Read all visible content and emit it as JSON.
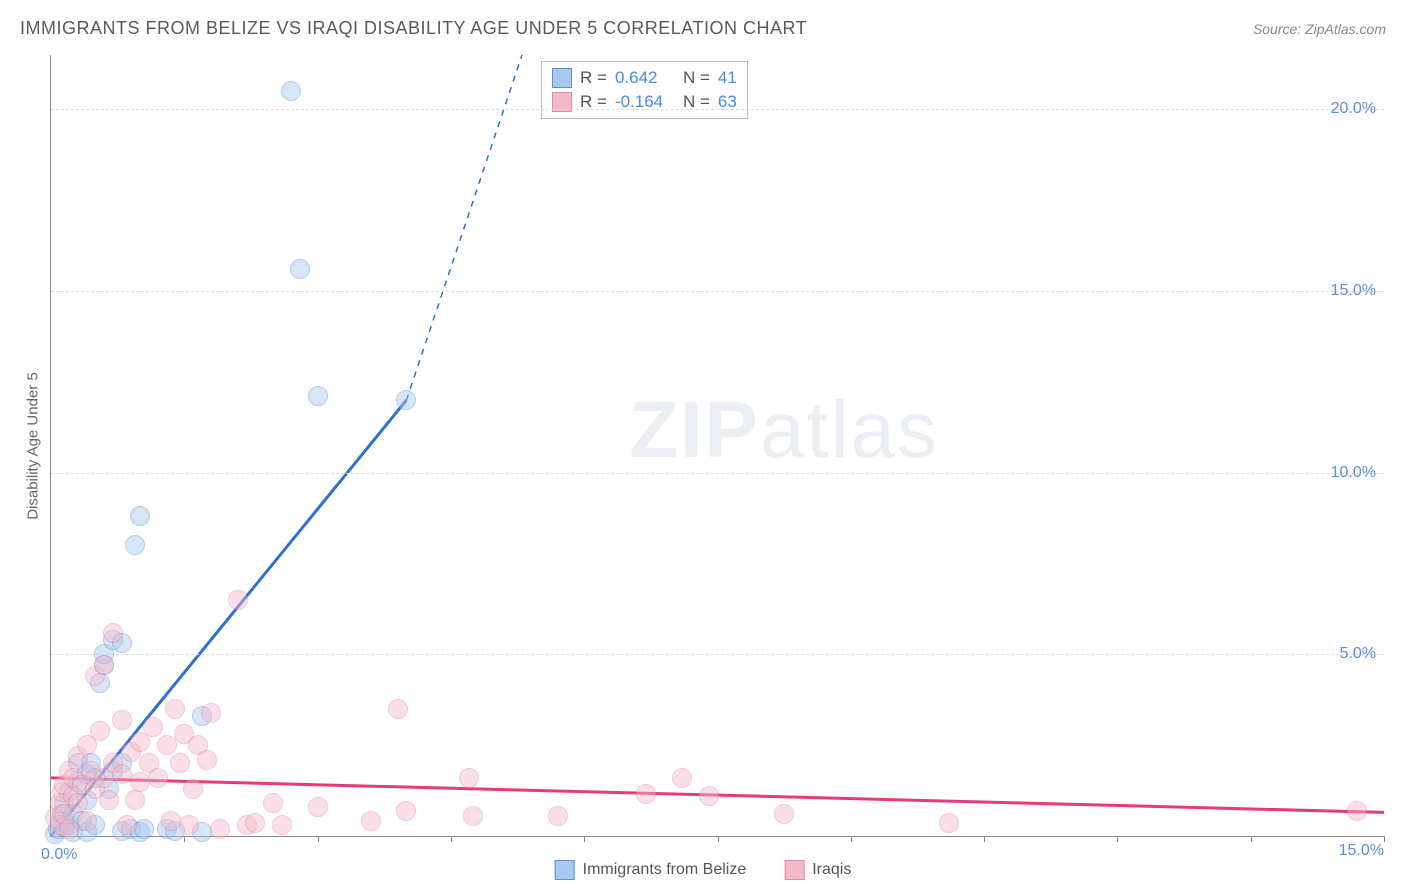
{
  "title": "IMMIGRANTS FROM BELIZE VS IRAQI DISABILITY AGE UNDER 5 CORRELATION CHART",
  "source": "Source: ZipAtlas.com",
  "y_axis_label": "Disability Age Under 5",
  "watermark_bold": "ZIP",
  "watermark_rest": "atlas",
  "chart": {
    "type": "scatter",
    "xlim": [
      0,
      15
    ],
    "ylim": [
      0,
      21.5
    ],
    "x_origin_label": "0.0%",
    "x_end_label": "15.0%",
    "y_ticks": [
      {
        "v": 5,
        "label": "5.0%"
      },
      {
        "v": 10,
        "label": "10.0%"
      },
      {
        "v": 15,
        "label": "15.0%"
      },
      {
        "v": 20,
        "label": "20.0%"
      }
    ],
    "x_tick_positions": [
      1.5,
      3.0,
      4.5,
      6.0,
      7.5,
      9.0,
      10.5,
      12.0,
      13.5,
      15.0
    ],
    "grid_color": "#dddddd",
    "background_color": "#ffffff",
    "marker_radius": 10,
    "marker_opacity": 0.45
  },
  "series": [
    {
      "key": "belize",
      "label": "Immigrants from Belize",
      "color_fill": "#a8c8ef",
      "color_stroke": "#5b8fd8",
      "R_label": "R =",
      "R": "0.642",
      "N_label": "N =",
      "N": "41",
      "trend_color": "#2f6fd0",
      "trend_width": 3,
      "trend_solid": {
        "x1": 0,
        "y1": 0,
        "x2": 4.0,
        "y2": 12.0
      },
      "trend_dash": {
        "x1": 4.0,
        "y1": 12.0,
        "x2": 5.3,
        "y2": 21.5
      },
      "points": [
        [
          0.05,
          0.05
        ],
        [
          0.08,
          0.2
        ],
        [
          0.1,
          0.4
        ],
        [
          0.12,
          0.6
        ],
        [
          0.15,
          0.25
        ],
        [
          0.15,
          0.9
        ],
        [
          0.2,
          0.3
        ],
        [
          0.2,
          1.2
        ],
        [
          0.25,
          0.1
        ],
        [
          0.25,
          0.6
        ],
        [
          0.3,
          1.5
        ],
        [
          0.3,
          2.0
        ],
        [
          0.35,
          0.4
        ],
        [
          0.4,
          1.0
        ],
        [
          0.4,
          1.7
        ],
        [
          0.4,
          0.1
        ],
        [
          0.45,
          2.0
        ],
        [
          0.5,
          1.6
        ],
        [
          0.5,
          0.3
        ],
        [
          0.55,
          4.2
        ],
        [
          0.6,
          4.7
        ],
        [
          0.6,
          5.0
        ],
        [
          0.65,
          1.3
        ],
        [
          0.7,
          1.8
        ],
        [
          0.7,
          5.4
        ],
        [
          0.8,
          0.15
        ],
        [
          0.8,
          2.0
        ],
        [
          0.8,
          5.3
        ],
        [
          0.9,
          0.2
        ],
        [
          0.95,
          8.0
        ],
        [
          1.0,
          0.1
        ],
        [
          1.0,
          8.8
        ],
        [
          1.05,
          0.2
        ],
        [
          1.3,
          0.2
        ],
        [
          1.4,
          0.15
        ],
        [
          1.7,
          3.3
        ],
        [
          1.7,
          0.1
        ],
        [
          2.7,
          20.5
        ],
        [
          2.8,
          15.6
        ],
        [
          3.0,
          12.1
        ],
        [
          4.0,
          12.0
        ]
      ]
    },
    {
      "key": "iraqis",
      "label": "Iraqis",
      "color_fill": "#f4b9c9",
      "color_stroke": "#e08aa5",
      "R_label": "R =",
      "R": "-0.164",
      "N_label": "N =",
      "N": "63",
      "trend_color": "#e63b7a",
      "trend_width": 3,
      "trend_solid": {
        "x1": 0,
        "y1": 1.6,
        "x2": 15.0,
        "y2": 0.65
      },
      "trend_dash": null,
      "points": [
        [
          0.05,
          0.5
        ],
        [
          0.1,
          0.3
        ],
        [
          0.1,
          0.9
        ],
        [
          0.12,
          1.2
        ],
        [
          0.15,
          0.6
        ],
        [
          0.15,
          1.4
        ],
        [
          0.2,
          0.2
        ],
        [
          0.2,
          1.8
        ],
        [
          0.25,
          1.1
        ],
        [
          0.25,
          1.6
        ],
        [
          0.3,
          0.9
        ],
        [
          0.3,
          2.2
        ],
        [
          0.35,
          1.4
        ],
        [
          0.4,
          0.4
        ],
        [
          0.4,
          2.5
        ],
        [
          0.45,
          1.8
        ],
        [
          0.5,
          1.3
        ],
        [
          0.5,
          4.4
        ],
        [
          0.55,
          2.9
        ],
        [
          0.6,
          1.6
        ],
        [
          0.6,
          4.7
        ],
        [
          0.65,
          1.0
        ],
        [
          0.7,
          2.0
        ],
        [
          0.7,
          5.6
        ],
        [
          0.8,
          1.7
        ],
        [
          0.8,
          3.2
        ],
        [
          0.85,
          0.3
        ],
        [
          0.9,
          2.3
        ],
        [
          0.95,
          1.0
        ],
        [
          1.0,
          2.6
        ],
        [
          1.0,
          1.5
        ],
        [
          1.1,
          2.0
        ],
        [
          1.15,
          3.0
        ],
        [
          1.2,
          1.6
        ],
        [
          1.3,
          2.5
        ],
        [
          1.35,
          0.4
        ],
        [
          1.4,
          3.5
        ],
        [
          1.45,
          2.0
        ],
        [
          1.5,
          2.8
        ],
        [
          1.55,
          0.3
        ],
        [
          1.6,
          1.3
        ],
        [
          1.65,
          2.5
        ],
        [
          1.75,
          2.1
        ],
        [
          1.8,
          3.4
        ],
        [
          1.9,
          0.2
        ],
        [
          2.1,
          6.5
        ],
        [
          2.2,
          0.3
        ],
        [
          2.3,
          0.35
        ],
        [
          2.5,
          0.9
        ],
        [
          2.6,
          0.3
        ],
        [
          3.0,
          0.8
        ],
        [
          3.6,
          0.4
        ],
        [
          3.9,
          3.5
        ],
        [
          4.0,
          0.7
        ],
        [
          4.7,
          1.6
        ],
        [
          4.75,
          0.55
        ],
        [
          5.7,
          0.55
        ],
        [
          6.7,
          1.15
        ],
        [
          7.1,
          1.6
        ],
        [
          7.4,
          1.1
        ],
        [
          8.25,
          0.6
        ],
        [
          10.1,
          0.35
        ],
        [
          14.7,
          0.7
        ]
      ]
    }
  ]
}
